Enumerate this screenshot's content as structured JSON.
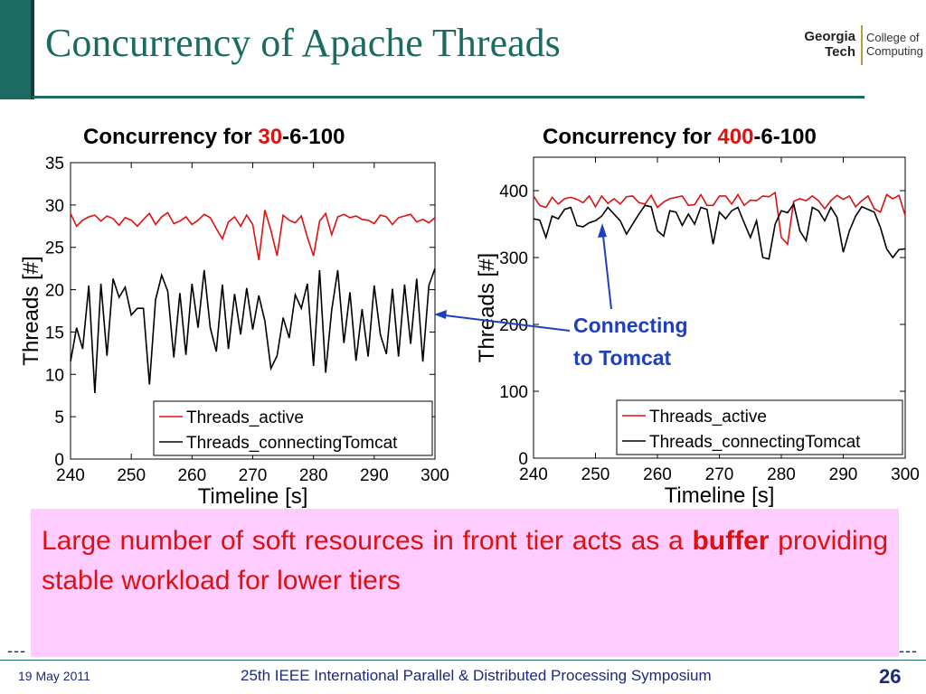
{
  "slide": {
    "title": "Concurrency of Apache Threads",
    "logo": {
      "line1": "Georgia",
      "line2": "Tech",
      "line3": "College of",
      "line4": "Computing"
    },
    "callout": {
      "line1": "Connecting",
      "line2": "to Tomcat"
    },
    "note": {
      "pre": "Large number of soft resources in front tier acts as a ",
      "bold": "buffer",
      "post": " providing stable workload for lower tiers"
    },
    "dashes": "---",
    "footer": {
      "date": "19 May 2011",
      "conference": "25th IEEE International Parallel & Distributed Processing Symposium",
      "page": "26"
    },
    "colors": {
      "teal": "#1b6b63",
      "callout_blue": "#1f3fbf",
      "note_bg": "#ffccff",
      "note_text": "#e01010"
    }
  },
  "chart_data": [
    {
      "type": "line",
      "title_pre": "Concurrency for ",
      "title_hl": "30",
      "title_post": "-6-100",
      "xlabel": "Timeline [s]",
      "ylabel": "Threads [#]",
      "xlim": [
        240,
        300
      ],
      "ylim": [
        0,
        35
      ],
      "xticks": [
        240,
        250,
        260,
        270,
        280,
        290,
        300
      ],
      "yticks": [
        0,
        5,
        10,
        15,
        20,
        25,
        30,
        35
      ],
      "legend": "bottom-right",
      "x": [
        240,
        241,
        242,
        243,
        244,
        245,
        246,
        247,
        248,
        249,
        250,
        251,
        252,
        253,
        254,
        255,
        256,
        257,
        258,
        259,
        260,
        261,
        262,
        263,
        264,
        265,
        266,
        267,
        268,
        269,
        270,
        271,
        272,
        273,
        274,
        275,
        276,
        277,
        278,
        279,
        280,
        281,
        282,
        283,
        284,
        285,
        286,
        287,
        288,
        289,
        290,
        291,
        292,
        293,
        294,
        295,
        296,
        297,
        298,
        299,
        300
      ],
      "series": [
        {
          "name": "Threads_active",
          "color": "#e01010",
          "values": [
            29,
            27.5,
            28.2,
            28.6,
            28.8,
            28.1,
            28.7,
            28.4,
            27.6,
            28.5,
            28.2,
            27.5,
            28.3,
            29,
            27.7,
            28.6,
            29.1,
            27.8,
            28.1,
            28.6,
            27.7,
            28.2,
            28.9,
            28.5,
            27.2,
            26,
            28,
            28.6,
            27.5,
            28.8,
            27.7,
            23.5,
            29.4,
            27,
            24,
            28.8,
            28.2,
            27.9,
            28.7,
            26.2,
            24,
            28.1,
            29,
            26.5,
            28.6,
            28.9,
            28.5,
            28.7,
            28.3,
            28.2,
            27.8,
            28.8,
            28.6,
            27.7,
            28.5,
            28.7,
            28.9,
            28,
            28.3,
            27.9,
            28.5
          ]
        },
        {
          "name": "Threads_connectingTomcat",
          "color": "#000000",
          "values": [
            11.5,
            15.5,
            13,
            20.5,
            7.8,
            20.7,
            12.2,
            21.3,
            19.1,
            20.3,
            17,
            17.8,
            17.8,
            8.8,
            18.8,
            21.7,
            19.8,
            12,
            19.6,
            12.3,
            20.7,
            15.5,
            22.3,
            15.5,
            12.7,
            20.6,
            13,
            19.5,
            14.7,
            20.2,
            15.3,
            19.3,
            16.3,
            10.7,
            12.2,
            16.7,
            14.3,
            19.4,
            17.8,
            20.7,
            11,
            22.3,
            10.2,
            17.6,
            22.3,
            13.7,
            19.7,
            11.6,
            17.7,
            12.1,
            20.5,
            14.7,
            12.4,
            20.1,
            12.1,
            20.6,
            13.6,
            21.3,
            11.5,
            20.5,
            22.5
          ]
        }
      ]
    },
    {
      "type": "line",
      "title_pre": "Concurrency for ",
      "title_hl": "400",
      "title_post": "-6-100",
      "xlabel": "Timeline [s]",
      "ylabel": "Threads [#]",
      "xlim": [
        240,
        300
      ],
      "ylim": [
        0,
        450
      ],
      "xticks": [
        240,
        250,
        260,
        270,
        280,
        290,
        300
      ],
      "yticks": [
        0,
        100,
        200,
        300,
        400
      ],
      "legend": "bottom-right",
      "x": [
        240,
        241,
        242,
        243,
        244,
        245,
        246,
        247,
        248,
        249,
        250,
        251,
        252,
        253,
        254,
        255,
        256,
        257,
        258,
        259,
        260,
        261,
        262,
        263,
        264,
        265,
        266,
        267,
        268,
        269,
        270,
        271,
        272,
        273,
        274,
        275,
        276,
        277,
        278,
        279,
        280,
        281,
        282,
        283,
        284,
        285,
        286,
        287,
        288,
        289,
        290,
        291,
        292,
        293,
        294,
        295,
        296,
        297,
        298,
        299,
        300
      ],
      "series": [
        {
          "name": "Threads_active",
          "color": "#e01010",
          "values": [
            392,
            378,
            375,
            390,
            380,
            388,
            390,
            387,
            382,
            392,
            376,
            392,
            381,
            388,
            380,
            391,
            392,
            382,
            380,
            393,
            375,
            383,
            388,
            390,
            392,
            378,
            379,
            394,
            378,
            378,
            392,
            392,
            380,
            394,
            378,
            386,
            385,
            392,
            391,
            397,
            330,
            320,
            384,
            388,
            385,
            392,
            385,
            373,
            385,
            393,
            387,
            392,
            376,
            385,
            392,
            373,
            368,
            394,
            388,
            393,
            363
          ]
        },
        {
          "name": "Threads_connectingTomcat",
          "color": "#000000",
          "values": [
            358,
            356,
            330,
            362,
            358,
            372,
            375,
            348,
            346,
            352,
            355,
            362,
            375,
            365,
            355,
            335,
            350,
            365,
            378,
            376,
            340,
            332,
            370,
            368,
            348,
            365,
            350,
            375,
            372,
            320,
            368,
            358,
            370,
            375,
            352,
            330,
            355,
            300,
            298,
            350,
            370,
            367,
            380,
            340,
            325,
            375,
            370,
            355,
            375,
            360,
            308,
            340,
            362,
            376,
            372,
            368,
            345,
            313,
            300,
            312,
            313
          ]
        }
      ]
    }
  ]
}
